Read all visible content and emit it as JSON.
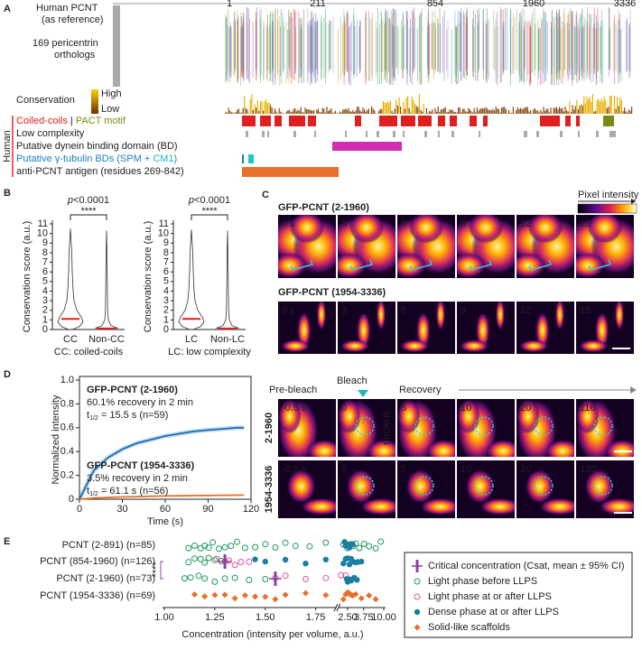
{
  "A": {
    "label": "A",
    "reference": "Human PCNT",
    "reference_note": "(as reference)",
    "positions": [
      1,
      211,
      854,
      1960,
      3336
    ],
    "orthologs": "169 pericentrin",
    "orthologs_2": "orthologs",
    "conservation": "Conservation",
    "high": "High",
    "low": "Low",
    "species": "Human",
    "tracks": {
      "coiled": "Coiled-coils",
      "separator": " | ",
      "pact": "PACT motif",
      "low_complexity": "Low complexity",
      "dynein": "Putative dynein binding domain (BD)",
      "gtub": "Putative γ-tubulin BDs (SPM + ",
      "gtub_cm1": "CM1",
      "gtub_end": ")",
      "antigen": "anti-PCNT antigen (residues 269-842)"
    }
  },
  "B": {
    "label": "B",
    "ylabel": "Conservation score (a.u.)",
    "ylim": [
      0,
      11
    ],
    "yticks": [
      0,
      1,
      2,
      3,
      4,
      5,
      6,
      7,
      8,
      9,
      10,
      11
    ],
    "plots": [
      {
        "p_symbol": "p",
        "p_value": "<0.0001",
        "stars": "****",
        "categories": [
          "CC",
          "Non-CC"
        ],
        "medians": [
          1.1,
          0.1
        ],
        "maxima": [
          10.5,
          10.3
        ],
        "caption": "CC: coiled-coils"
      },
      {
        "p_symbol": "p",
        "p_value": "<0.0001",
        "stars": "****",
        "categories": [
          "LC",
          "Non-LC"
        ],
        "medians": [
          1.1,
          0.1
        ],
        "maxima": [
          10.4,
          10.3
        ],
        "caption": "LC: low complexity"
      }
    ]
  },
  "C": {
    "label": "C",
    "colorbar": "Pixel intensity",
    "rows": [
      {
        "title": "GFP-PCNT (2-1960)",
        "times": [
          "0 s",
          "3",
          "6",
          "9",
          "12",
          "15"
        ]
      },
      {
        "title": "GFP-PCNT (1954-3336)",
        "times": [
          "0 s",
          "3",
          "6",
          "9",
          "12",
          "15"
        ]
      }
    ]
  },
  "D": {
    "label": "D",
    "ylabel": "Normalized intensity",
    "xlabel": "Time (s)",
    "xlim": [
      0,
      120
    ],
    "ylim": [
      0,
      1
    ],
    "xticks": [
      0,
      30,
      60,
      90,
      120
    ],
    "yticks": [
      0,
      0.2,
      0.4,
      0.6,
      0.8,
      {
        "value": 1,
        "label": "1.0"
      }
    ],
    "x": [
      0,
      10,
      20,
      30,
      40,
      50,
      60,
      70,
      80,
      90,
      100,
      110,
      115
    ],
    "series": [
      {
        "name": "GFP-PCNT (2-1960)",
        "color": "#1a6fb5",
        "values": [
          0,
          0.24,
          0.35,
          0.42,
          0.47,
          0.5,
          0.53,
          0.55,
          0.57,
          0.58,
          0.59,
          0.6,
          0.6
        ],
        "recovery": "60.1% recovery in 2 min",
        "t": "t",
        "t_sub": "1/2",
        "t_rest": " = 15.5 s (n=59)"
      },
      {
        "name": "GFP-PCNT (1954-3336)",
        "color": "#e8702a",
        "values": [
          0,
          0.01,
          0.015,
          0.02,
          0.022,
          0.025,
          0.027,
          0.029,
          0.03,
          0.032,
          0.033,
          0.034,
          0.035
        ],
        "recovery": "3.5% recovery in 2 min",
        "t": "t",
        "t_sub": "1/2",
        "t_rest": " = 61.1 s (n=56)"
      }
    ],
    "stages": [
      "Pre-bleach",
      "Bleach",
      "Recovery"
    ],
    "nucleus": "nucleus",
    "rows": [
      {
        "name": "2-1960",
        "times": [
          "-0.5 s",
          "0",
          "5",
          "10",
          "20",
          "116"
        ]
      },
      {
        "name": "1954-3336",
        "times": [
          "-0.5 s",
          "0",
          "5",
          "10",
          "20",
          "120"
        ]
      }
    ]
  },
  "E": {
    "label": "E",
    "xlabel": "Concentration (intensity per volume, a.u.)",
    "xlim": [
      1,
      10
    ],
    "axis_break": [
      1.85,
      2.1
    ],
    "xticks": [
      {
        "value": 1,
        "label": "1.00"
      },
      {
        "value": 1.25,
        "label": "1.25"
      },
      {
        "value": 1.5,
        "label": "1.50"
      },
      {
        "value": 1.75,
        "label": "1.75"
      },
      {
        "value": 2.5,
        "label": "2.50"
      },
      {
        "value": 3.75,
        "label": "3.75"
      },
      {
        "value": 10,
        "label": "10.00"
      }
    ],
    "stars": "****",
    "legend": [
      {
        "label": "Critical concentration (Csat, mean ± 95% CI)",
        "color": "#8b3fa0"
      },
      {
        "label": "Light phase before LLPS",
        "color": "#1a9a5a"
      },
      {
        "label": "Light phase at or after LLPS",
        "color": "#e0559a"
      },
      {
        "label": "Dense phase at or after LLPS",
        "color": "#1a7fa0"
      },
      {
        "label": "Solid-like scaffolds",
        "color": "#e8702a"
      }
    ],
    "rows": [
      {
        "label": "PCNT (2-891) (n=85)",
        "light_before": [
          1.12,
          1.15,
          1.18,
          1.2,
          1.22,
          1.24,
          1.27,
          1.3,
          1.33,
          1.36,
          1.4,
          1.45,
          1.5,
          1.55,
          1.6,
          1.65,
          1.72,
          1.8,
          2.3,
          2.5,
          2.6,
          2.8,
          3.0,
          3.3,
          3.8,
          4.5,
          6,
          8
        ],
        "dense": [
          2.35,
          2.4,
          2.45,
          2.5,
          2.55,
          2.6,
          2.7,
          2.8
        ]
      },
      {
        "label": "PCNT (854-1960) (n=126)",
        "light_before": [
          1.12,
          1.15,
          1.18,
          1.2,
          1.22,
          1.25,
          1.28
        ],
        "light_after": [
          1.26,
          1.3,
          1.32,
          1.35,
          1.38,
          1.42
        ],
        "dense": [
          1.45,
          1.5,
          1.6,
          1.7,
          1.8,
          2.3,
          2.4,
          2.5,
          2.6,
          2.7,
          2.8,
          3.0,
          3.2,
          3.5
        ],
        "csat": 1.3
      },
      {
        "label": "PCNT (2-1960) (n=73)",
        "light_before": [
          1.1,
          1.13,
          1.17,
          1.2,
          1.25,
          1.3,
          1.35,
          1.42,
          1.5
        ],
        "light_after": [
          1.55,
          1.6,
          1.7,
          1.8,
          2.2,
          2.4
        ],
        "dense": [
          2.45,
          2.5,
          2.55,
          2.6,
          2.7,
          2.9,
          3.1
        ],
        "csat": 1.55
      },
      {
        "label": "PCNT (1954-3336) (n=69)",
        "solid": [
          1.15,
          1.2,
          1.25,
          1.3,
          1.35,
          1.4,
          1.45,
          1.5,
          1.55,
          1.6,
          1.7,
          1.8,
          2.3,
          2.4,
          2.5,
          2.55,
          2.6,
          2.7,
          2.8,
          3.0,
          3.5,
          4.5,
          6
        ]
      }
    ]
  }
}
